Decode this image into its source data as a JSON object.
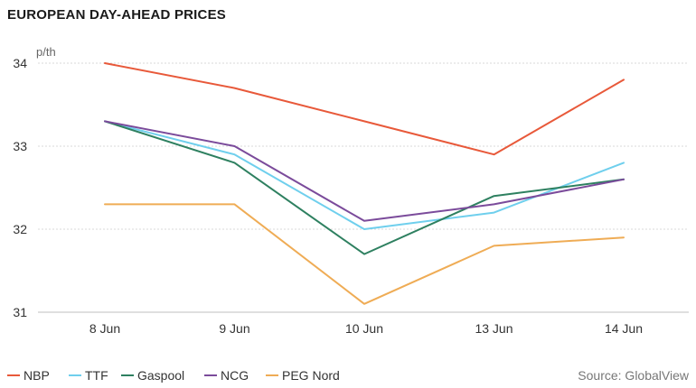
{
  "chart_data": {
    "type": "line",
    "title": "EUROPEAN DAY-AHEAD PRICES",
    "unit": "p/th",
    "source": "Source: GlobalView",
    "categories": [
      "8 Jun",
      "9 Jun",
      "10 Jun",
      "13 Jun",
      "14 Jun"
    ],
    "ylim": [
      31,
      34
    ],
    "yticks": [
      "31",
      "32",
      "33",
      "34"
    ],
    "grid": true,
    "legend_position": "bottom-left",
    "series": [
      {
        "name": "NBP",
        "color": "#e8593a",
        "values": [
          34.0,
          33.7,
          33.3,
          32.9,
          33.8
        ]
      },
      {
        "name": "TTF",
        "color": "#6fcfed",
        "values": [
          33.3,
          32.9,
          32.0,
          32.2,
          32.8
        ]
      },
      {
        "name": "Gaspool",
        "color": "#2e8060",
        "values": [
          33.3,
          32.8,
          31.7,
          32.4,
          32.6
        ]
      },
      {
        "name": "NCG",
        "color": "#7b4b9b",
        "values": [
          33.3,
          33.0,
          32.1,
          32.3,
          32.6
        ]
      },
      {
        "name": "PEG Nord",
        "color": "#efac55",
        "values": [
          32.3,
          32.3,
          31.1,
          31.8,
          31.9
        ]
      }
    ]
  }
}
